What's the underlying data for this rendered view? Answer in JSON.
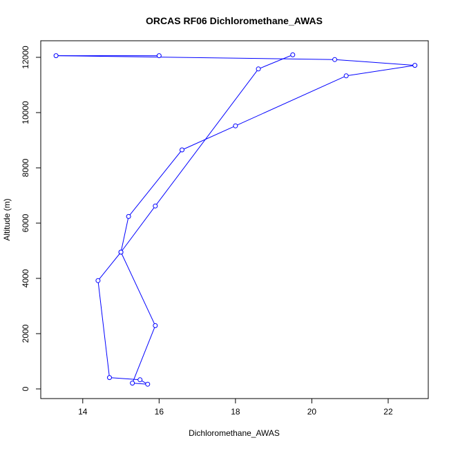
{
  "chart_data": {
    "type": "line",
    "title": "ORCAS RF06 Dichloromethane_AWAS",
    "xlabel": "Dichloromethane_AWAS",
    "ylabel": "Altitude (m)",
    "xlim": [
      12.9,
      23.05
    ],
    "ylim": [
      -350,
      12600
    ],
    "x_ticks": [
      14,
      16,
      18,
      20,
      22
    ],
    "y_ticks": [
      0,
      2000,
      4000,
      6000,
      8000,
      10000,
      12000
    ],
    "grid": false,
    "series": [
      {
        "color": "#0000ff",
        "marker": "open-circle",
        "points": [
          {
            "x": 16.0,
            "y": 12060
          },
          {
            "x": 13.3,
            "y": 12060
          },
          {
            "x": 20.6,
            "y": 11920
          },
          {
            "x": 22.7,
            "y": 11710
          },
          {
            "x": 20.9,
            "y": 11330
          },
          {
            "x": 18.0,
            "y": 9520
          },
          {
            "x": 16.6,
            "y": 8650
          },
          {
            "x": 15.2,
            "y": 6240
          },
          {
            "x": 15.0,
            "y": 4950
          },
          {
            "x": 15.9,
            "y": 2290
          },
          {
            "x": 15.3,
            "y": 210
          },
          {
            "x": 15.7,
            "y": 170
          },
          {
            "x": 15.5,
            "y": 330
          },
          {
            "x": 14.7,
            "y": 410
          },
          {
            "x": 14.4,
            "y": 3920
          },
          {
            "x": 15.0,
            "y": 4950
          },
          {
            "x": 15.9,
            "y": 6620
          },
          {
            "x": 18.6,
            "y": 11580
          },
          {
            "x": 19.5,
            "y": 12090
          }
        ]
      }
    ]
  }
}
